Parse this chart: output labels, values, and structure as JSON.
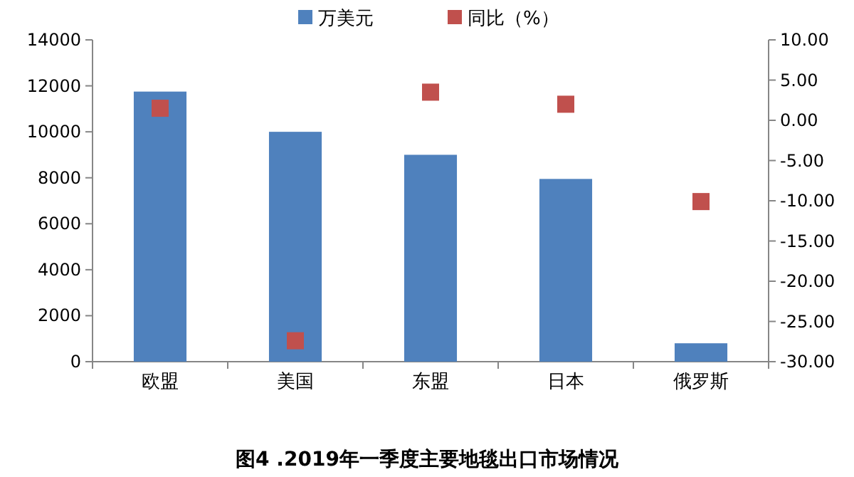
{
  "chart_data": {
    "type": "bar",
    "title": "图4 .2019年一季度主要地毯出口市场情况",
    "categories": [
      "欧盟",
      "美国",
      "东盟",
      "日本",
      "俄罗斯"
    ],
    "series": [
      {
        "name": "万美元",
        "color": "#4f81bd",
        "values": [
          11750,
          10000,
          9000,
          7950,
          800
        ]
      },
      {
        "name": "同比（%）",
        "type": "scatter",
        "axis": "y2",
        "color": "#c0504d",
        "marker": "square",
        "values": [
          1.5,
          -27.4,
          3.5,
          2.0,
          -10.1
        ]
      }
    ],
    "ylim": [
      0,
      14000
    ],
    "yticks": [
      0,
      2000,
      4000,
      6000,
      8000,
      10000,
      12000,
      14000
    ],
    "y2lim": [
      -30,
      10
    ],
    "y2ticks": [
      {
        "value": -30,
        "label": "-30.00"
      },
      {
        "value": -25,
        "label": "-25.00"
      },
      {
        "value": -20,
        "label": "-20.00"
      },
      {
        "value": -15,
        "label": "-15.00"
      },
      {
        "value": -10,
        "label": "-10.00"
      },
      {
        "value": -5,
        "label": "-5.00"
      },
      {
        "value": 0,
        "label": "0.00"
      },
      {
        "value": 5,
        "label": "5.00"
      },
      {
        "value": 10,
        "label": "10.00"
      }
    ],
    "legend": "top",
    "grid": false
  }
}
